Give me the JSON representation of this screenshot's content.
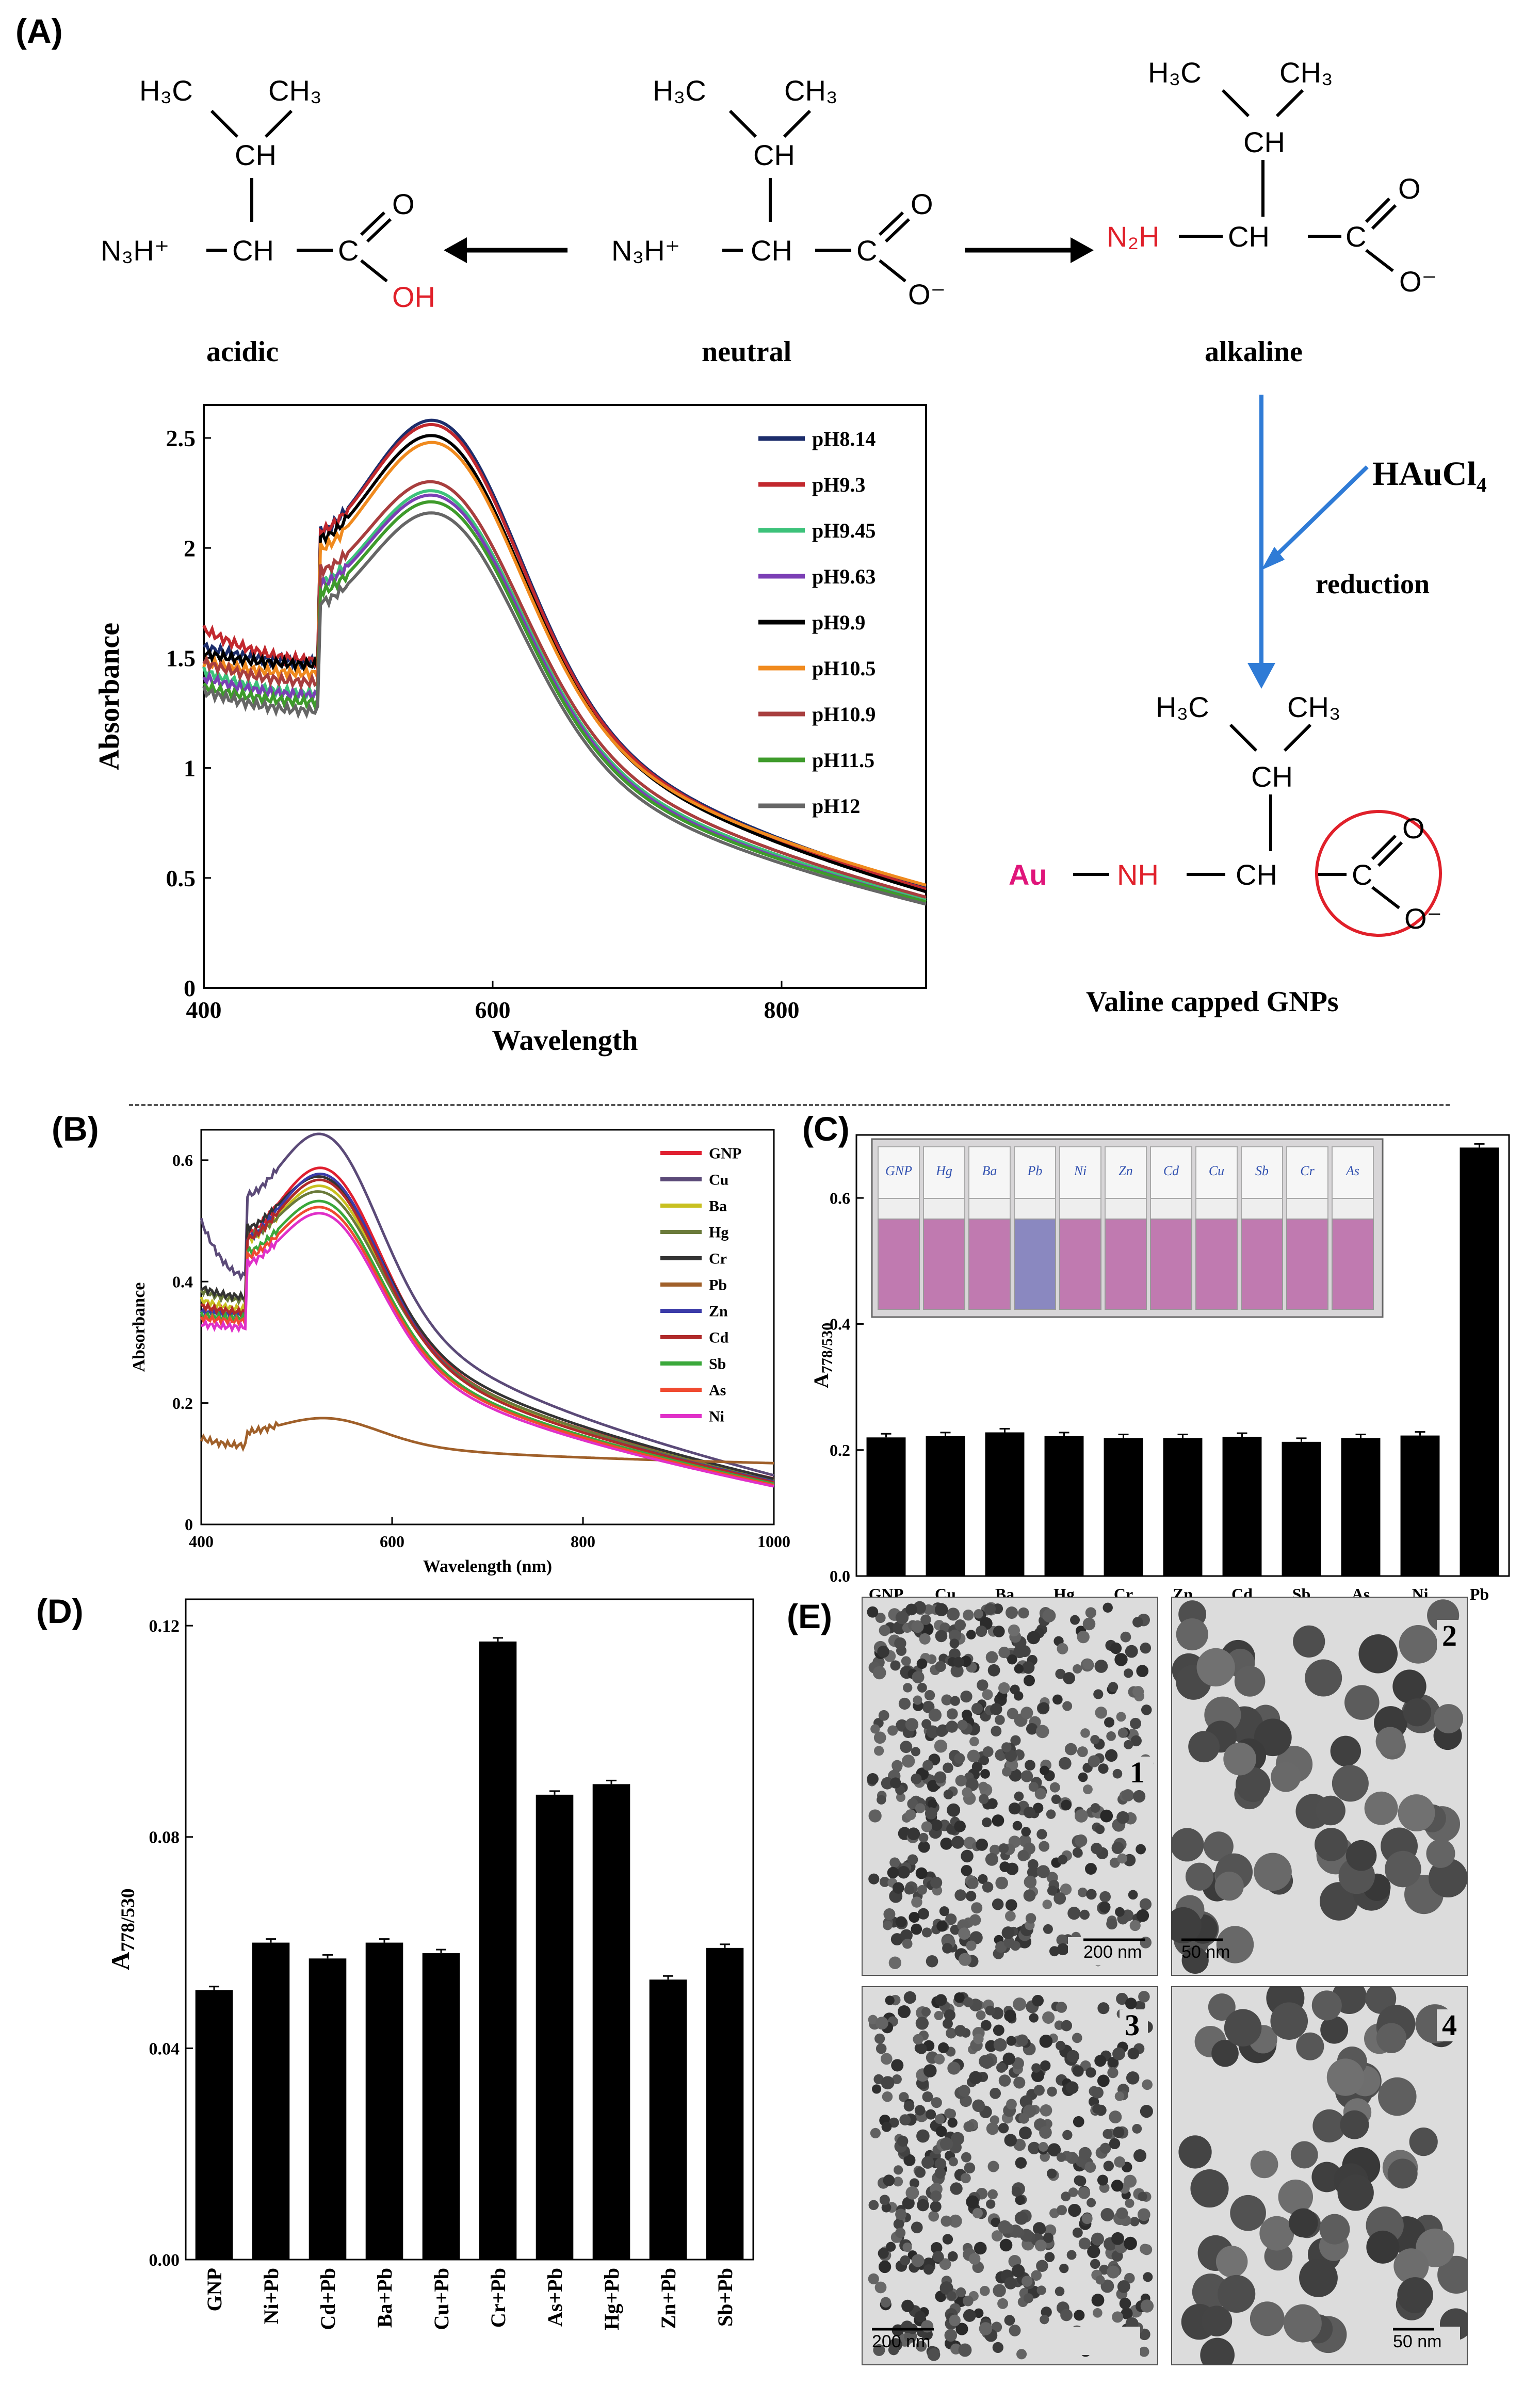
{
  "panels": {
    "a": "(A)",
    "b": "(B)",
    "c": "(C)",
    "d": "(D)",
    "e": "(E)"
  },
  "colors": {
    "red": "#e0202a",
    "magenta": "#e0157a",
    "blue": "#2f7bd6",
    "bar": "#000000"
  },
  "scheme": {
    "acidic": {
      "h3c": "H₃C",
      "ch3": "CH₃",
      "ch": "CH",
      "n3h": "N₃H⁺",
      "ch_alpha": "CH",
      "c": "C",
      "o": "O",
      "oh": "OH",
      "label": "acidic"
    },
    "neutral": {
      "h3c": "H₃C",
      "ch3": "CH₃",
      "ch": "CH",
      "n3h": "N₃H⁺",
      "ch_alpha": "CH",
      "c": "C",
      "o": "O",
      "o_minus": "O⁻",
      "label": "neutral"
    },
    "alkaline": {
      "h3c": "H₃C",
      "ch3": "CH₃",
      "ch": "CH",
      "n2h": "N₂H",
      "ch_alpha": "CH",
      "c": "C",
      "o": "O",
      "o_minus": "O⁻",
      "label": "alkaline"
    },
    "reagent": "HAuCl₄",
    "reduction": "reduction",
    "capped": {
      "h3c": "H₃C",
      "ch3": "CH₃",
      "ch": "CH",
      "au": "Au",
      "nh": "NH",
      "ch_alpha": "CH",
      "c": "C",
      "o": "O",
      "o_minus": "O⁻",
      "label": "Valine capped GNPs"
    }
  },
  "chart_data": [
    {
      "id": "A",
      "type": "line",
      "xlabel": "Wavelength",
      "ylabel": "Absorbance",
      "xlim": [
        400,
        900
      ],
      "ylim": [
        0,
        2.65
      ],
      "xticks": [
        "400",
        "600",
        "800"
      ],
      "yticks": [
        "0",
        "0.5",
        "1",
        "1.5",
        "2",
        "2.5"
      ],
      "peak_x": 565,
      "series": [
        {
          "name": "pH8.14",
          "color": "#1c2d6b",
          "start": 1.55,
          "trough": 1.48,
          "peak": 2.57,
          "end": 0.41
        },
        {
          "name": "pH9.3",
          "color": "#c2282e",
          "start": 1.63,
          "trough": 1.49,
          "peak": 2.55,
          "end": 0.4
        },
        {
          "name": "pH9.45",
          "color": "#3cc27a",
          "start": 1.44,
          "trough": 1.34,
          "peak": 2.25,
          "end": 0.36
        },
        {
          "name": "pH9.63",
          "color": "#7b3fb5",
          "start": 1.41,
          "trough": 1.33,
          "peak": 2.23,
          "end": 0.35
        },
        {
          "name": "pH9.9",
          "color": "#000000",
          "start": 1.52,
          "trough": 1.47,
          "peak": 2.5,
          "end": 0.39
        },
        {
          "name": "pH10.5",
          "color": "#f08a1e",
          "start": 1.48,
          "trough": 1.43,
          "peak": 2.47,
          "end": 0.42
        },
        {
          "name": "pH10.9",
          "color": "#a83e3e",
          "start": 1.48,
          "trough": 1.39,
          "peak": 2.29,
          "end": 0.37
        },
        {
          "name": "pH11.5",
          "color": "#3e9b2b",
          "start": 1.37,
          "trough": 1.3,
          "peak": 2.2,
          "end": 0.35
        },
        {
          "name": "pH12",
          "color": "#666666",
          "start": 1.35,
          "trough": 1.26,
          "peak": 2.15,
          "end": 0.34
        }
      ]
    },
    {
      "id": "B",
      "type": "line",
      "xlabel": "Wavelength (nm)",
      "ylabel": "Absorbance",
      "xlim": [
        400,
        1000
      ],
      "ylim": [
        0,
        0.65
      ],
      "xticks": [
        "400",
        "600",
        "800",
        "1000"
      ],
      "yticks": [
        "0",
        "0.2",
        "0.4",
        "0.6"
      ],
      "peak_x": 532,
      "series": [
        {
          "name": "GNP",
          "color": "#e02030",
          "start": 0.36,
          "trough": 0.35,
          "peak": 0.585,
          "end": 0.07
        },
        {
          "name": "Cu",
          "color": "#5b4a78",
          "start": 0.5,
          "trough": 0.41,
          "peak": 0.64,
          "end": 0.075
        },
        {
          "name": "Ba",
          "color": "#c8c020",
          "start": 0.37,
          "trough": 0.355,
          "peak": 0.555,
          "end": 0.068
        },
        {
          "name": "Hg",
          "color": "#6a7a3a",
          "start": 0.385,
          "trough": 0.37,
          "peak": 0.545,
          "end": 0.066
        },
        {
          "name": "Cr",
          "color": "#333333",
          "start": 0.39,
          "trough": 0.375,
          "peak": 0.57,
          "end": 0.07
        },
        {
          "name": "Pb",
          "color": "#a0602a",
          "start": 0.142,
          "trough": 0.13,
          "peak": 0.175,
          "end": 0.1
        },
        {
          "name": "Zn",
          "color": "#3b3ba8",
          "start": 0.35,
          "trough": 0.345,
          "peak": 0.575,
          "end": 0.065
        },
        {
          "name": "Cd",
          "color": "#b02a2a",
          "start": 0.36,
          "trough": 0.35,
          "peak": 0.565,
          "end": 0.064
        },
        {
          "name": "Sb",
          "color": "#3aa83a",
          "start": 0.345,
          "trough": 0.34,
          "peak": 0.53,
          "end": 0.062
        },
        {
          "name": "As",
          "color": "#f04a30",
          "start": 0.34,
          "trough": 0.335,
          "peak": 0.52,
          "end": 0.06
        },
        {
          "name": "Ni",
          "color": "#e030c8",
          "start": 0.33,
          "trough": 0.325,
          "peak": 0.51,
          "end": 0.058
        }
      ]
    },
    {
      "id": "C",
      "type": "bar",
      "ylabel": "A778/530",
      "ylim": [
        0,
        0.7
      ],
      "yticks": [
        "0.0",
        "0.2",
        "0.4",
        "0.6"
      ],
      "categories": [
        "GNP",
        "Cu",
        "Ba",
        "Hg",
        "Cr",
        "Zn",
        "Cd",
        "Sb",
        "As",
        "Ni",
        "Pb"
      ],
      "values": [
        0.22,
        0.222,
        0.228,
        0.222,
        0.219,
        0.219,
        0.221,
        0.213,
        0.219,
        0.223,
        0.68
      ],
      "vial_labels": [
        "GNP",
        "Hg",
        "Ba",
        "Pb",
        "Ni",
        "Zn",
        "Cd",
        "Cu",
        "Sb",
        "Cr",
        "As"
      ],
      "vial_colors": [
        "#c07ab0",
        "#c07ab0",
        "#c07ab0",
        "#8a88c0",
        "#c07ab0",
        "#c07ab0",
        "#c07ab0",
        "#c07ab0",
        "#c07ab0",
        "#c07ab0",
        "#c07ab0"
      ]
    },
    {
      "id": "D",
      "type": "bar",
      "ylabel": "A778/530",
      "ylim": [
        0,
        0.125
      ],
      "yticks": [
        "0.00",
        "0.04",
        "0.08",
        "0.12"
      ],
      "categories": [
        "GNP",
        "Ni+Pb",
        "Cd+Pb",
        "Ba+Pb",
        "Cu+Pb",
        "Cr+Pb",
        "As+Pb",
        "Hg+Pb",
        "Zn+Pb",
        "Sb+Pb"
      ],
      "values": [
        0.051,
        0.06,
        0.057,
        0.06,
        0.058,
        0.117,
        0.088,
        0.09,
        0.053,
        0.059
      ]
    }
  ],
  "tem": [
    {
      "num": "1",
      "scale": "200 nm"
    },
    {
      "num": "2",
      "scale": "50 nm"
    },
    {
      "num": "3",
      "scale": "200 nm"
    },
    {
      "num": "4",
      "scale": "50 nm"
    }
  ]
}
